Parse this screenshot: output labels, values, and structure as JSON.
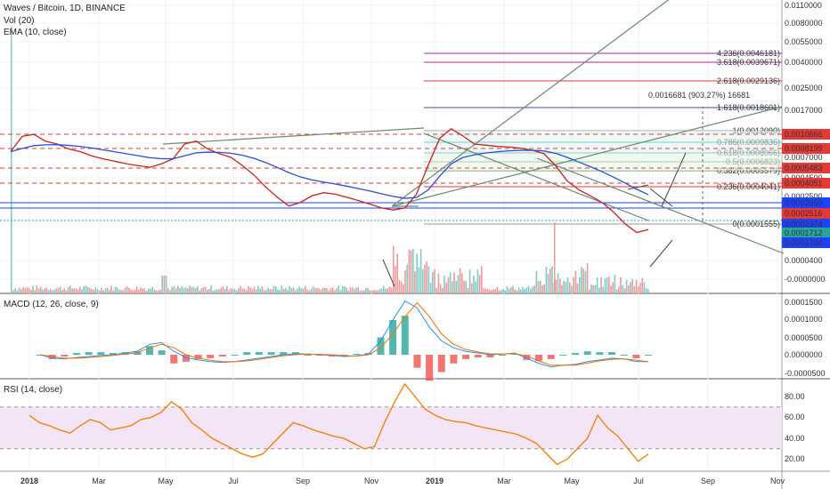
{
  "header": {
    "symbol_line": "Waves / Bitcoin, 1D, BINANCE",
    "vol_label": "Vol (20)",
    "ema_label": "EMA (10, close)",
    "macd_label": "MACD (12, 26, close, 9)",
    "rsi_label": "RSI (14, close)"
  },
  "colors": {
    "price_line": "#cc2222",
    "ema_line": "#2a4fd6",
    "fib_red": "#e53935",
    "fib_green": "#43a047",
    "fib_teal": "#26a69a",
    "fib_magenta": "#b0269f",
    "fib_blue": "#3949ab",
    "trend_line": "#6b8a6b",
    "rsi_line": "#f57c00",
    "rsi_band": "#f3e5f5",
    "vol_up": "#80cbc4",
    "vol_down": "#ef9a9a",
    "macd_line": "#2196f3",
    "signal_line": "#ff6d00",
    "badge_red": "#e53935",
    "badge_blue": "#1e40ff",
    "badge_teal": "#26a69a"
  },
  "chart_data": {
    "type": "line",
    "title": "Waves / Bitcoin, 1D, BINANCE",
    "x_axis": {
      "tick_labels": [
        "2018",
        "Mar",
        "May",
        "Jul",
        "Sep",
        "Nov",
        "2019",
        "Mar",
        "May",
        "Jul",
        "Sep",
        "Nov"
      ]
    },
    "price_axis": {
      "tick_labels": [
        "0.0110000",
        "0.0080000",
        "0.0055000",
        "0.0040000",
        "0.0025000",
        "0.0017000",
        "0.0007000",
        "0.0004500",
        "0.0002500",
        "0.0000400",
        "-0.0000000"
      ],
      "scale": "log"
    },
    "price_series": [
      0.00078,
      0.00104,
      0.00108,
      0.00095,
      0.0009,
      0.00082,
      0.00078,
      0.00072,
      0.00068,
      0.00065,
      0.00062,
      0.0006,
      0.00058,
      0.00062,
      0.00068,
      0.0009,
      0.00095,
      0.00082,
      0.00075,
      0.0007,
      0.0006,
      0.0005,
      0.0004,
      0.00033,
      0.00028,
      0.0003,
      0.00034,
      0.00036,
      0.00035,
      0.00033,
      0.00031,
      0.00029,
      0.00027,
      0.00026,
      0.00027,
      0.00035,
      0.0006,
      0.001,
      0.0012,
      0.00105,
      0.0009,
      0.00088,
      0.00086,
      0.00085,
      0.00083,
      0.0008,
      0.00075,
      0.0006,
      0.00045,
      0.00038,
      0.00034,
      0.0003,
      0.00025,
      0.0002,
      0.00017,
      0.00018
    ],
    "fib_levels": [
      {
        "label": "4.236(0.0046181)",
        "color": "magenta"
      },
      {
        "label": "3.618(0.0039671)",
        "color": "magenta"
      },
      {
        "label": "2.618(0.0029136)",
        "color": "red"
      },
      {
        "label": "1.618(0.0018601)",
        "color": "blue"
      },
      {
        "label": "1(0.0012090)",
        "color": "gray"
      },
      {
        "label": "0.786(0.0009836)",
        "color": "teal"
      },
      {
        "label": "0.618(0.0008066)",
        "color": "teal"
      },
      {
        "label": "0.5(0.0006823)",
        "color": "green"
      },
      {
        "label": "0.382(0.0005579)",
        "color": "green"
      },
      {
        "label": "0.236(0.0004041)",
        "color": "red"
      },
      {
        "label": "0(0.0001555)",
        "color": "gray"
      }
    ],
    "annotation": "0.0016681 (903.27%) 16681",
    "price_badges": [
      {
        "label": "0.0010666",
        "color": "red"
      },
      {
        "label": "0.0008199",
        "color": "red"
      },
      {
        "label": "0.0005483",
        "color": "red"
      },
      {
        "label": "0.0004051",
        "color": "red"
      },
      {
        "label": "0.0002650",
        "color": "blue"
      },
      {
        "label": "0.0002516",
        "color": "red"
      },
      {
        "label": "0.0002374",
        "color": "blue"
      },
      {
        "label": "0.0001712",
        "color": "teal"
      },
      {
        "label": "0.0001704",
        "color": "blue"
      }
    ],
    "macd": {
      "tick_labels": [
        "0.0001500",
        "0.0001000",
        "0.0000500",
        "0.0000000",
        "-0.0000500"
      ],
      "macd_values": [
        0.0,
        -1e-05,
        -1.2e-05,
        -8e-06,
        -5e-06,
        -2e-06,
        0.0,
        5e-06,
        1e-05,
        3e-05,
        3.5e-05,
        1e-05,
        -8e-06,
        -1.5e-05,
        -2e-05,
        -2.2e-05,
        -2e-05,
        -1.5e-05,
        -1e-05,
        -5e-06,
        0.0,
        3e-06,
        2e-06,
        0.0,
        -2e-06,
        -5e-06,
        -3e-06,
        2e-06,
        4e-05,
        0.0001,
        0.000155,
        0.000135,
        8e-05,
        4e-05,
        2e-05,
        1e-05,
        5e-06,
        0.0,
        2e-06,
        5e-06,
        -1e-05,
        -2.5e-05,
        -3.5e-05,
        -3e-05,
        -2.8e-05,
        -2e-05,
        -1.5e-05,
        -1e-05,
        -1.2e-05,
        -2e-05,
        -2e-05
      ],
      "signal_values": [
        0.0,
        -5e-06,
        -1e-05,
        -1e-05,
        -8e-06,
        -5e-06,
        -2e-06,
        2e-06,
        6e-06,
        2e-05,
        3e-05,
        2e-05,
        0.0,
        -1e-05,
        -1.6e-05,
        -2e-05,
        -2e-05,
        -1.8e-05,
        -1.3e-05,
        -8e-06,
        -3e-06,
        0.0,
        2e-06,
        1e-06,
        0.0,
        -3e-06,
        -4e-06,
        0.0,
        2e-05,
        6e-05,
        0.00011,
        0.00015,
        0.00011,
        6e-05,
        3e-05,
        1.5e-05,
        8e-06,
        3e-06,
        2e-06,
        4e-06,
        -4e-06,
        -1.8e-05,
        -3e-05,
        -3e-05,
        -3e-05,
        -2.4e-05,
        -1.8e-05,
        -1.3e-05,
        -1.2e-05,
        -1.6e-05,
        -2e-05
      ]
    },
    "rsi": {
      "tick_labels": [
        "80.00",
        "60.00",
        "40.00",
        "20.00"
      ],
      "band": [
        30,
        70
      ],
      "values": [
        62,
        55,
        52,
        48,
        45,
        52,
        58,
        55,
        48,
        50,
        52,
        58,
        60,
        65,
        75,
        68,
        55,
        48,
        40,
        35,
        30,
        25,
        22,
        25,
        35,
        45,
        55,
        52,
        48,
        45,
        42,
        40,
        35,
        30,
        32,
        55,
        75,
        92,
        80,
        68,
        62,
        58,
        56,
        55,
        52,
        50,
        48,
        46,
        44,
        40,
        35,
        25,
        15,
        20,
        30,
        40,
        62,
        50,
        42,
        30,
        18,
        25
      ]
    }
  }
}
